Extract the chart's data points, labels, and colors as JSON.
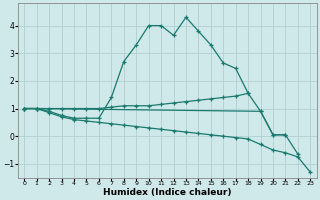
{
  "xlabel": "Humidex (Indice chaleur)",
  "bg_color": "#cfe8ea",
  "grid_color": "#b0d0d3",
  "line_color": "#1a7a6e",
  "ylim": [
    -1.5,
    4.8
  ],
  "xlim": [
    -0.5,
    23.5
  ],
  "yticks": [
    -1,
    0,
    1,
    2,
    3,
    4
  ],
  "xticks": [
    0,
    1,
    2,
    3,
    4,
    5,
    6,
    7,
    8,
    9,
    10,
    11,
    12,
    13,
    14,
    15,
    16,
    17,
    18,
    19,
    20,
    21,
    22,
    23
  ],
  "xtick_labels": [
    "0",
    "1",
    "2",
    "3",
    "4",
    "5",
    "6",
    "7",
    "8",
    "9",
    "10",
    "11",
    "12",
    "13",
    "14",
    "15",
    "16",
    "17",
    "18",
    "19",
    "20",
    "21",
    "22",
    "23"
  ],
  "lines": [
    {
      "x": [
        0,
        1,
        2,
        3,
        4,
        5,
        6,
        7,
        8,
        9,
        10,
        11,
        12,
        13,
        14,
        15,
        16,
        17,
        18,
        19,
        20,
        21
      ],
      "y": [
        1.0,
        1.0,
        0.9,
        0.75,
        0.65,
        0.65,
        0.65,
        1.4,
        2.7,
        3.3,
        4.0,
        4.0,
        3.65,
        4.3,
        3.8,
        3.3,
        2.65,
        2.45,
        1.55,
        0.9,
        0.05,
        0.05
      ]
    },
    {
      "x": [
        0,
        1,
        2,
        3,
        4,
        5,
        6,
        7,
        8,
        9,
        10,
        11,
        12,
        13,
        14,
        15,
        16,
        17,
        18
      ],
      "y": [
        1.0,
        1.0,
        1.0,
        1.0,
        1.0,
        1.0,
        1.0,
        1.05,
        1.1,
        1.1,
        1.1,
        1.15,
        1.2,
        1.25,
        1.3,
        1.35,
        1.4,
        1.45,
        1.55
      ]
    },
    {
      "x": [
        0,
        1,
        2,
        3,
        4,
        5,
        6,
        7,
        8,
        9,
        10,
        11,
        12,
        13,
        14,
        15,
        16,
        17,
        18,
        19,
        20,
        21,
        22,
        23
      ],
      "y": [
        1.0,
        1.0,
        0.85,
        0.7,
        0.6,
        0.55,
        0.5,
        0.45,
        0.4,
        0.35,
        0.3,
        0.25,
        0.2,
        0.15,
        0.1,
        0.05,
        0.0,
        -0.05,
        -0.1,
        -0.3,
        -0.5,
        -0.6,
        -0.75,
        -1.3
      ]
    },
    {
      "x": [
        0,
        1,
        19,
        20,
        21,
        22,
        23
      ],
      "y": [
        1.0,
        1.0,
        0.9,
        0.05,
        0.05,
        -0.65,
        null
      ]
    }
  ]
}
